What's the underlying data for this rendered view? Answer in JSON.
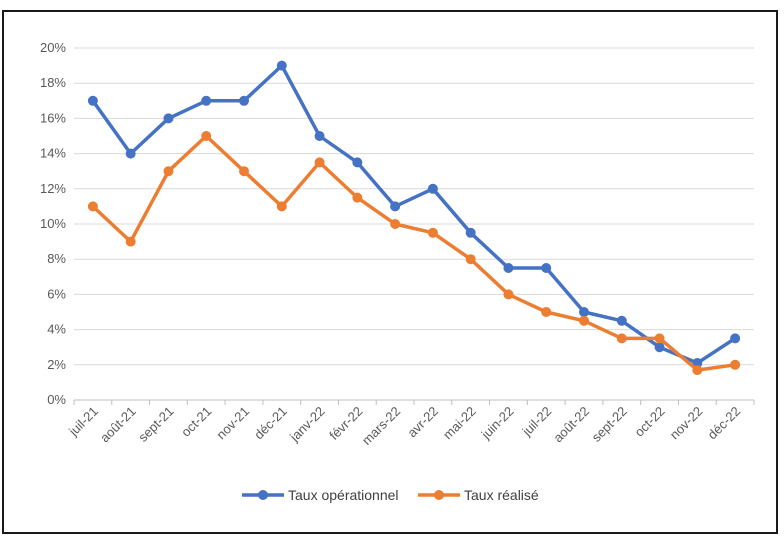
{
  "chart_data": {
    "type": "line",
    "categories": [
      "juil-21",
      "août-21",
      "sept-21",
      "oct-21",
      "nov-21",
      "déc-21",
      "janv-22",
      "févr-22",
      "mars-22",
      "avr-22",
      "mai-22",
      "juin-22",
      "juil-22",
      "août-22",
      "sept-22",
      "oct-22",
      "nov-22",
      "déc-22"
    ],
    "series": [
      {
        "name": "Taux opérationnel",
        "color": "#4472C4",
        "values": [
          17,
          14,
          16,
          17,
          17,
          19,
          15,
          13.5,
          11,
          12,
          9.5,
          7.5,
          7.5,
          5,
          4.5,
          3,
          2.1,
          3.5
        ]
      },
      {
        "name": "Taux réalisé",
        "color": "#ED7D31",
        "values": [
          11,
          9,
          13,
          15,
          13,
          11,
          13.5,
          11.5,
          10,
          9.5,
          8,
          6,
          5,
          4.5,
          3.5,
          3.5,
          1.7,
          2
        ]
      }
    ],
    "ylim": [
      0,
      20
    ],
    "yticks": [
      "0%",
      "2%",
      "4%",
      "6%",
      "8%",
      "10%",
      "12%",
      "14%",
      "16%",
      "18%",
      "20%"
    ],
    "grid": true,
    "legend": "bottom",
    "gridColor": "#d9d9d9"
  }
}
